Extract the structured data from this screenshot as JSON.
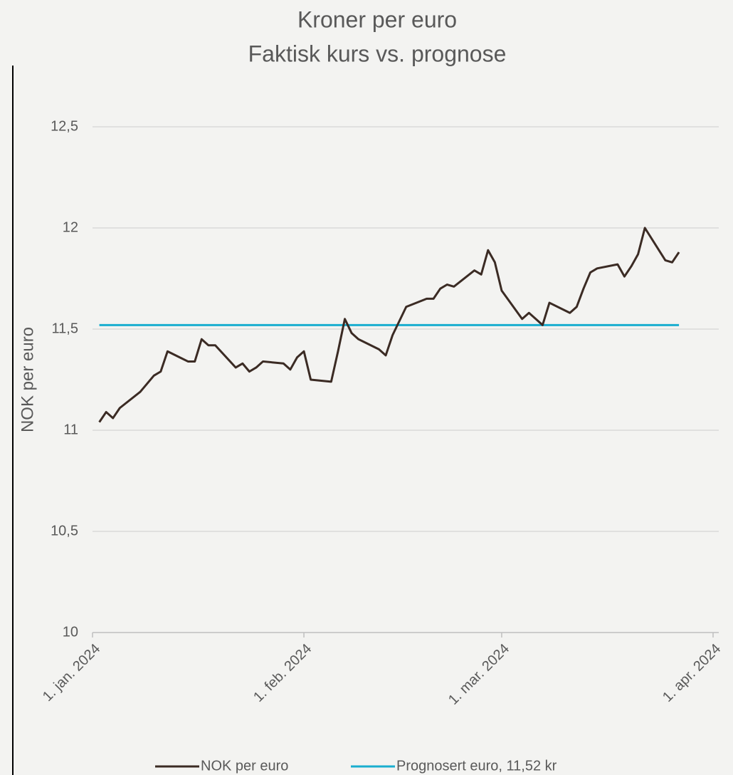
{
  "chart_data": {
    "type": "line",
    "title": "Kroner per euro",
    "subtitle": "Faktisk kurs vs. prognose",
    "y_label": "NOK per euro",
    "xlim": [
      "2024-01-01",
      "2024-04-01"
    ],
    "xticks": [
      {
        "value": "2024-01-01",
        "label": "1. jan. 2024"
      },
      {
        "value": "2024-02-01",
        "label": "1. feb. 2024"
      },
      {
        "value": "2024-03-01",
        "label": "1. mar. 2024"
      },
      {
        "value": "2024-04-01",
        "label": "1. apr. 2024"
      }
    ],
    "ylim": [
      10,
      12.5
    ],
    "yticks": [
      10,
      {
        "value": 10.5,
        "label": "10,5"
      },
      11,
      {
        "value": 11.5,
        "label": "11,5"
      },
      12,
      {
        "value": 12.5,
        "label": "12,5"
      }
    ],
    "grid": true,
    "legend": "bottom",
    "series": [
      {
        "name": "NOK per euro",
        "color": "#3b2b24",
        "x": [
          "2024-01-02",
          "2024-01-03",
          "2024-01-04",
          "2024-01-05",
          "2024-01-08",
          "2024-01-09",
          "2024-01-10",
          "2024-01-11",
          "2024-01-12",
          "2024-01-15",
          "2024-01-16",
          "2024-01-17",
          "2024-01-18",
          "2024-01-19",
          "2024-01-22",
          "2024-01-23",
          "2024-01-24",
          "2024-01-25",
          "2024-01-26",
          "2024-01-29",
          "2024-01-30",
          "2024-01-31",
          "2024-02-01",
          "2024-02-02",
          "2024-02-05",
          "2024-02-06",
          "2024-02-07",
          "2024-02-08",
          "2024-02-09",
          "2024-02-12",
          "2024-02-13",
          "2024-02-14",
          "2024-02-15",
          "2024-02-16",
          "2024-02-19",
          "2024-02-20",
          "2024-02-21",
          "2024-02-22",
          "2024-02-23",
          "2024-02-26",
          "2024-02-27",
          "2024-02-28",
          "2024-02-29",
          "2024-03-01",
          "2024-03-04",
          "2024-03-05",
          "2024-03-06",
          "2024-03-07",
          "2024-03-08",
          "2024-03-11",
          "2024-03-12",
          "2024-03-13",
          "2024-03-14",
          "2024-03-15",
          "2024-03-18",
          "2024-03-19",
          "2024-03-20",
          "2024-03-21",
          "2024-03-22",
          "2024-03-25",
          "2024-03-26",
          "2024-03-27"
        ],
        "values": [
          11.04,
          11.09,
          11.06,
          11.11,
          11.19,
          11.23,
          11.27,
          11.29,
          11.39,
          11.34,
          11.34,
          11.45,
          11.42,
          11.42,
          11.31,
          11.33,
          11.29,
          11.31,
          11.34,
          11.33,
          11.3,
          11.36,
          11.39,
          11.25,
          11.24,
          11.39,
          11.55,
          11.48,
          11.45,
          11.4,
          11.37,
          11.47,
          11.54,
          11.61,
          11.65,
          11.65,
          11.7,
          11.72,
          11.71,
          11.79,
          11.77,
          11.89,
          11.83,
          11.69,
          11.55,
          11.58,
          11.55,
          11.52,
          11.63,
          11.58,
          11.61,
          11.7,
          11.78,
          11.8,
          11.82,
          11.76,
          11.81,
          11.87,
          12.0,
          11.84,
          11.83,
          11.88
        ]
      },
      {
        "name": "Prognosert euro, 11,52 kr",
        "color": "#1aaecf",
        "x": [
          "2024-01-02",
          "2024-03-27"
        ],
        "values": [
          11.52,
          11.52
        ]
      }
    ]
  }
}
